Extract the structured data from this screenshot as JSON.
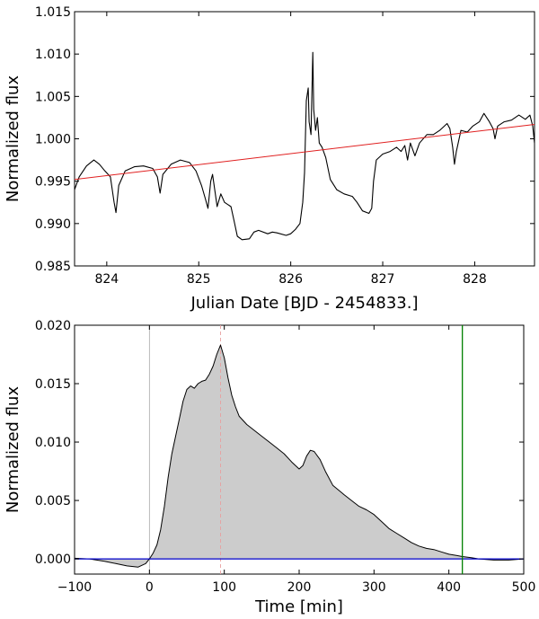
{
  "chart_data": [
    {
      "type": "line",
      "xlabel": "Julian Date [BJD - 2454833.]",
      "ylabel": "Normalized flux",
      "xlim": [
        823.65,
        828.65
      ],
      "ylim": [
        0.985,
        1.015
      ],
      "x_ticks": [
        824,
        825,
        826,
        827,
        828
      ],
      "y_ticks": [
        0.985,
        0.99,
        0.995,
        1.0,
        1.005,
        1.01,
        1.015
      ],
      "x_tick_labels": [
        "824",
        "825",
        "826",
        "827",
        "828"
      ],
      "y_tick_labels": [
        "0.985",
        "0.990",
        "0.995",
        "1.000",
        "1.005",
        "1.010",
        "1.015"
      ],
      "grid": false,
      "colors": {
        "light_curve": "#000000",
        "trend": "#e02020"
      },
      "series": [
        {
          "style": "light-curve",
          "points": [
            [
              823.65,
              0.994
            ],
            [
              823.7,
              0.9955
            ],
            [
              823.78,
              0.9968
            ],
            [
              823.86,
              0.9975
            ],
            [
              823.92,
              0.997
            ],
            [
              823.98,
              0.9962
            ],
            [
              824.04,
              0.9955
            ],
            [
              824.08,
              0.9925
            ],
            [
              824.1,
              0.9913
            ],
            [
              824.13,
              0.9945
            ],
            [
              824.2,
              0.9962
            ],
            [
              824.3,
              0.9967
            ],
            [
              824.4,
              0.9968
            ],
            [
              824.5,
              0.9965
            ],
            [
              824.55,
              0.9955
            ],
            [
              824.58,
              0.9936
            ],
            [
              824.61,
              0.9958
            ],
            [
              824.7,
              0.997
            ],
            [
              824.8,
              0.9975
            ],
            [
              824.9,
              0.9972
            ],
            [
              824.97,
              0.9962
            ],
            [
              825.03,
              0.9945
            ],
            [
              825.07,
              0.993
            ],
            [
              825.1,
              0.9918
            ],
            [
              825.13,
              0.995
            ],
            [
              825.15,
              0.9958
            ],
            [
              825.18,
              0.9935
            ],
            [
              825.2,
              0.992
            ],
            [
              825.24,
              0.9935
            ],
            [
              825.28,
              0.9925
            ],
            [
              825.35,
              0.992
            ],
            [
              825.38,
              0.9905
            ],
            [
              825.42,
              0.9885
            ],
            [
              825.47,
              0.9881
            ],
            [
              825.55,
              0.9882
            ],
            [
              825.6,
              0.989
            ],
            [
              825.65,
              0.9892
            ],
            [
              825.75,
              0.9888
            ],
            [
              825.8,
              0.989
            ],
            [
              825.85,
              0.9889
            ],
            [
              825.95,
              0.9886
            ],
            [
              826.0,
              0.9888
            ],
            [
              826.05,
              0.9893
            ],
            [
              826.1,
              0.99
            ],
            [
              826.13,
              0.9925
            ],
            [
              826.15,
              0.996
            ],
            [
              826.17,
              1.0045
            ],
            [
              826.19,
              1.006
            ],
            [
              826.2,
              1.002
            ],
            [
              826.22,
              1.0005
            ],
            [
              826.24,
              1.0102
            ],
            [
              826.25,
              1.0035
            ],
            [
              826.27,
              1.001
            ],
            [
              826.29,
              1.0025
            ],
            [
              826.31,
              0.9995
            ],
            [
              826.34,
              0.999
            ],
            [
              826.38,
              0.9978
            ],
            [
              826.43,
              0.9952
            ],
            [
              826.5,
              0.994
            ],
            [
              826.58,
              0.9935
            ],
            [
              826.67,
              0.9932
            ],
            [
              826.72,
              0.9925
            ],
            [
              826.78,
              0.9915
            ],
            [
              826.85,
              0.9912
            ],
            [
              826.88,
              0.9918
            ],
            [
              826.9,
              0.995
            ],
            [
              826.93,
              0.9975
            ],
            [
              827.0,
              0.9982
            ],
            [
              827.08,
              0.9985
            ],
            [
              827.15,
              0.999
            ],
            [
              827.2,
              0.9985
            ],
            [
              827.24,
              0.9992
            ],
            [
              827.27,
              0.9975
            ],
            [
              827.3,
              0.9995
            ],
            [
              827.35,
              0.998
            ],
            [
              827.4,
              0.9995
            ],
            [
              827.48,
              1.0005
            ],
            [
              827.55,
              1.0005
            ],
            [
              827.62,
              1.001
            ],
            [
              827.7,
              1.0018
            ],
            [
              827.73,
              1.0012
            ],
            [
              827.76,
              0.999
            ],
            [
              827.78,
              0.997
            ],
            [
              827.8,
              0.9985
            ],
            [
              827.85,
              1.001
            ],
            [
              827.92,
              1.0008
            ],
            [
              827.98,
              1.0015
            ],
            [
              828.05,
              1.002
            ],
            [
              828.1,
              1.003
            ],
            [
              828.16,
              1.002
            ],
            [
              828.2,
              1.0012
            ],
            [
              828.22,
              1.0
            ],
            [
              828.25,
              1.0015
            ],
            [
              828.32,
              1.002
            ],
            [
              828.4,
              1.0022
            ],
            [
              828.48,
              1.0028
            ],
            [
              828.55,
              1.0023
            ],
            [
              828.6,
              1.0028
            ],
            [
              828.63,
              1.0015
            ],
            [
              828.65,
              0.9995
            ]
          ]
        },
        {
          "style": "trend-line",
          "points": [
            [
              823.65,
              0.9952
            ],
            [
              828.65,
              1.0017
            ]
          ]
        }
      ]
    },
    {
      "type": "area",
      "xlabel": "Time [min]",
      "ylabel": "Normalized flux",
      "xlim": [
        -100,
        500
      ],
      "ylim": [
        -0.0013,
        0.02
      ],
      "x_ticks": [
        -100,
        0,
        100,
        200,
        300,
        400,
        500
      ],
      "y_ticks": [
        0.0,
        0.005,
        0.01,
        0.015,
        0.02
      ],
      "x_tick_labels": [
        "−100",
        "0",
        "100",
        "200",
        "300",
        "400",
        "500"
      ],
      "y_tick_labels": [
        "0.000",
        "0.005",
        "0.010",
        "0.015",
        "0.020"
      ],
      "grid": false,
      "colors": {
        "fill": "#cccccc",
        "outline": "#000000",
        "baseline": "#0000cc",
        "end_line": "#008000",
        "peak_line": "#e8a0a0",
        "start_line": "#aaaaaa"
      },
      "reference_lines": {
        "start": 0,
        "peak": 95,
        "end": 418,
        "baseline": 0.0
      },
      "series": [
        {
          "style": "flare",
          "points": [
            [
              -100,
              5e-05
            ],
            [
              -80,
              0.0
            ],
            [
              -60,
              -0.0002
            ],
            [
              -45,
              -0.0004
            ],
            [
              -30,
              -0.0006
            ],
            [
              -15,
              -0.0007
            ],
            [
              -5,
              -0.0004
            ],
            [
              0,
              0.0
            ],
            [
              5,
              0.0005
            ],
            [
              10,
              0.0012
            ],
            [
              15,
              0.0025
            ],
            [
              20,
              0.0045
            ],
            [
              25,
              0.007
            ],
            [
              30,
              0.009
            ],
            [
              35,
              0.0105
            ],
            [
              40,
              0.012
            ],
            [
              45,
              0.0135
            ],
            [
              50,
              0.0145
            ],
            [
              55,
              0.0148
            ],
            [
              60,
              0.0146
            ],
            [
              65,
              0.015
            ],
            [
              70,
              0.0152
            ],
            [
              75,
              0.0153
            ],
            [
              80,
              0.0158
            ],
            [
              85,
              0.0165
            ],
            [
              90,
              0.0175
            ],
            [
              95,
              0.0183
            ],
            [
              100,
              0.0172
            ],
            [
              105,
              0.0155
            ],
            [
              110,
              0.014
            ],
            [
              115,
              0.013
            ],
            [
              120,
              0.0122
            ],
            [
              130,
              0.0115
            ],
            [
              140,
              0.011
            ],
            [
              150,
              0.0105
            ],
            [
              160,
              0.01
            ],
            [
              170,
              0.0095
            ],
            [
              180,
              0.009
            ],
            [
              190,
              0.0083
            ],
            [
              200,
              0.0077
            ],
            [
              205,
              0.008
            ],
            [
              210,
              0.0088
            ],
            [
              215,
              0.0093
            ],
            [
              220,
              0.0092
            ],
            [
              228,
              0.0085
            ],
            [
              235,
              0.0075
            ],
            [
              245,
              0.0063
            ],
            [
              260,
              0.0055
            ],
            [
              270,
              0.005
            ],
            [
              280,
              0.0045
            ],
            [
              290,
              0.0042
            ],
            [
              300,
              0.0038
            ],
            [
              310,
              0.0032
            ],
            [
              320,
              0.0026
            ],
            [
              330,
              0.0022
            ],
            [
              340,
              0.0018
            ],
            [
              350,
              0.0014
            ],
            [
              360,
              0.0011
            ],
            [
              370,
              0.0009
            ],
            [
              380,
              0.0008
            ],
            [
              390,
              0.0006
            ],
            [
              400,
              0.0004
            ],
            [
              410,
              0.0003
            ],
            [
              418,
              0.0002
            ],
            [
              430,
              0.0001
            ],
            [
              440,
              0.0
            ],
            [
              460,
              -0.0001
            ],
            [
              480,
              -0.0001
            ],
            [
              500,
              0.0
            ]
          ]
        }
      ]
    }
  ]
}
